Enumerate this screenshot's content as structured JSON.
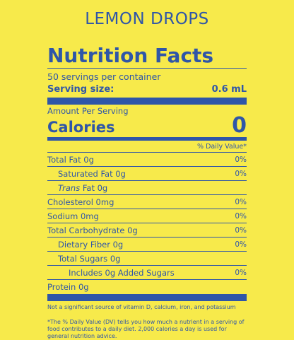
{
  "product_name": "LEMON DROPS",
  "label": {
    "title": "Nutrition Facts",
    "servings_per_container": "50 servings per container",
    "serving_size_label": "Serving size:",
    "serving_size_value": "0.6 mL",
    "amount_per_serving": "Amount Per Serving",
    "calories_label": "Calories",
    "calories_value": "0",
    "daily_value_header": "% Daily Value*",
    "rows": {
      "total_fat": {
        "label": "Total Fat 0g",
        "dv": "0%"
      },
      "saturated_fat": {
        "label": "Saturated Fat 0g",
        "dv": "0%"
      },
      "trans_fat_prefix": "Trans",
      "trans_fat_suffix": " Fat 0g",
      "cholesterol": {
        "label": "Cholesterol 0mg",
        "dv": "0%"
      },
      "sodium": {
        "label": "Sodium 0mg",
        "dv": "0%"
      },
      "total_carbohydrate": {
        "label": "Total Carbohydrate 0g",
        "dv": "0%"
      },
      "dietary_fiber": {
        "label": "Dietary Fiber 0g",
        "dv": "0%"
      },
      "total_sugars": {
        "label": "Total Sugars 0g"
      },
      "added_sugars": {
        "label": "Includes 0g Added Sugars",
        "dv": "0%"
      },
      "protein": {
        "label": "Protein 0g"
      }
    },
    "not_significant_note": "Not a significant source of vitamin D, calcium, iron, and potassium",
    "dv_footnote": "*The % Daily Value (DV) tells you how much a nutrient in a serving of food contributes to a daily diet. 2,000 calories a day is used for general nutrition advice."
  },
  "colors": {
    "background": "#f7ea4b",
    "ink": "#2f56a8"
  }
}
